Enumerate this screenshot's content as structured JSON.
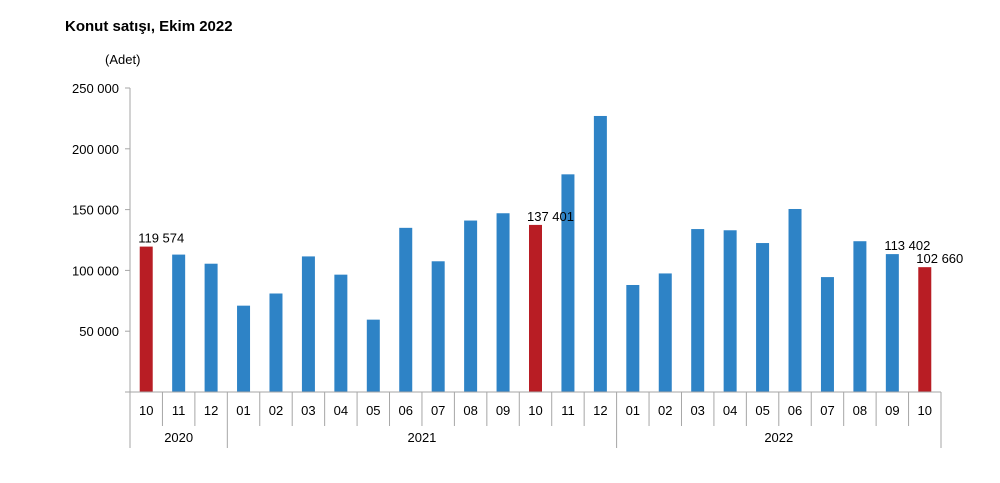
{
  "chart_data": {
    "type": "bar",
    "title": "Konut satışı, Ekim 2022",
    "ylabel": "(Adet)",
    "ylim": [
      0,
      250000
    ],
    "yticks": [
      {
        "value": 50000,
        "label": "50 000"
      },
      {
        "value": 100000,
        "label": "100 000"
      },
      {
        "value": 150000,
        "label": "150 000"
      },
      {
        "value": 200000,
        "label": "200 000"
      },
      {
        "value": 250000,
        "label": "250 000"
      }
    ],
    "grid": false,
    "categories": [
      "10",
      "11",
      "12",
      "01",
      "02",
      "03",
      "04",
      "05",
      "06",
      "07",
      "08",
      "09",
      "10",
      "11",
      "12",
      "01",
      "02",
      "03",
      "04",
      "05",
      "06",
      "07",
      "08",
      "09",
      "10"
    ],
    "groups": [
      {
        "label": "2020",
        "start": 0,
        "count": 3
      },
      {
        "label": "2021",
        "start": 3,
        "count": 12
      },
      {
        "label": "2022",
        "start": 15,
        "count": 10
      }
    ],
    "values": [
      119574,
      113000,
      105500,
      71000,
      81000,
      111500,
      96500,
      59500,
      135000,
      107500,
      141000,
      147000,
      137401,
      179000,
      227000,
      88000,
      97500,
      134000,
      133000,
      122500,
      150500,
      94500,
      124000,
      113402,
      102660
    ],
    "highlight": [
      0,
      12,
      24
    ],
    "data_labels": [
      {
        "index": 0,
        "text": "119 574"
      },
      {
        "index": 12,
        "text": "137 401"
      },
      {
        "index": 23,
        "text": "113 402"
      },
      {
        "index": 24,
        "text": "102 660"
      }
    ],
    "colors": {
      "normal": "#2e83c6",
      "highlight": "#b81d24",
      "axis": "#a6a6a6",
      "text": "#000000"
    }
  }
}
